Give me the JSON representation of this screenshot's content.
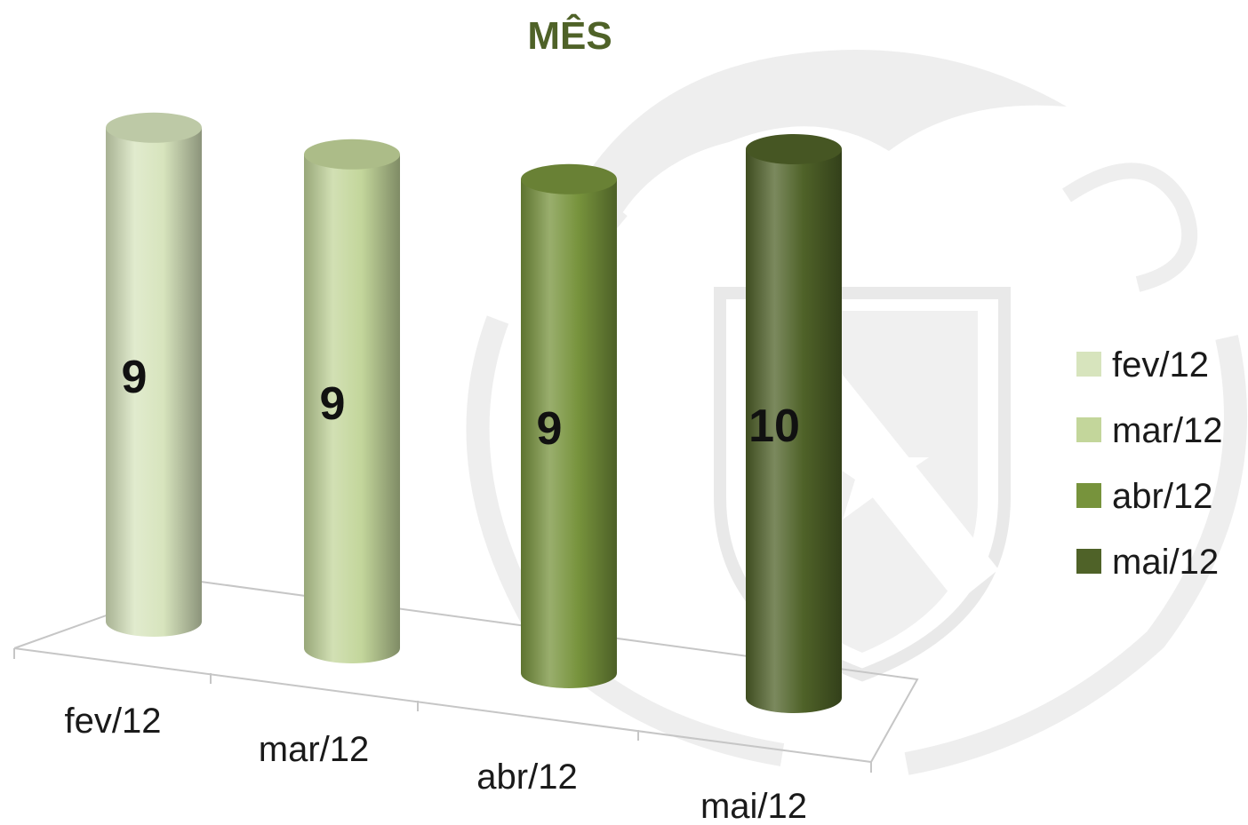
{
  "chart_data": {
    "type": "bar",
    "style": "3d-cylinder",
    "title": "MÊS",
    "title_color": "#4f6228",
    "categories": [
      "fev/12",
      "mar/12",
      "abr/12",
      "mai/12"
    ],
    "values": [
      9,
      9,
      9,
      10
    ],
    "data_labels": [
      "9",
      "9",
      "9",
      "10"
    ],
    "colors": [
      "#d7e4bd",
      "#c3d69b",
      "#77933c",
      "#4f6228"
    ],
    "legend": {
      "position": "right",
      "entries": [
        "fev/12",
        "mar/12",
        "abr/12",
        "mai/12"
      ]
    },
    "grid": false,
    "xlabel": "",
    "ylabel": ""
  }
}
